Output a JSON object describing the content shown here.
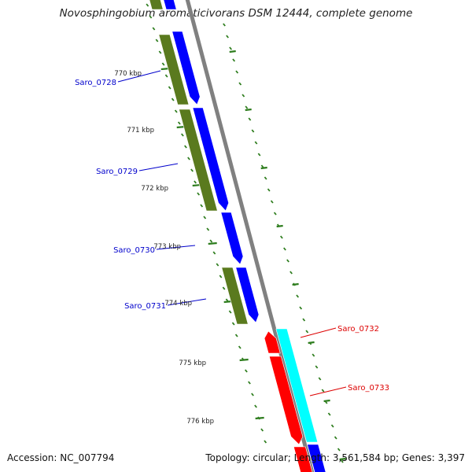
{
  "title": "Novosphingobium aromaticivorans DSM 12444, complete genome",
  "footer": {
    "accession": "Accession: NC_007794",
    "summary": "Topology: circular; Length: 3,561,584 bp; Genes: 3,397"
  },
  "colors": {
    "forward_gene": "#0000ff",
    "forward_cds": "#5a7a1e",
    "reverse_gene": "#ff0000",
    "reverse_cds": "#00ffff",
    "backbone": "#808080",
    "tick": "#2e7d1e",
    "forward_label": "#0000cc",
    "reverse_label": "#dd0000"
  },
  "kbp_labels": [
    "770 kbp",
    "771 kbp",
    "772 kbp",
    "773 kbp",
    "774 kbp",
    "775 kbp",
    "776 kbp"
  ],
  "forward_genes": [
    "Saro_0728",
    "Saro_0729",
    "Saro_0730",
    "Saro_0731"
  ],
  "reverse_genes": [
    "Saro_0732",
    "Saro_0733"
  ]
}
